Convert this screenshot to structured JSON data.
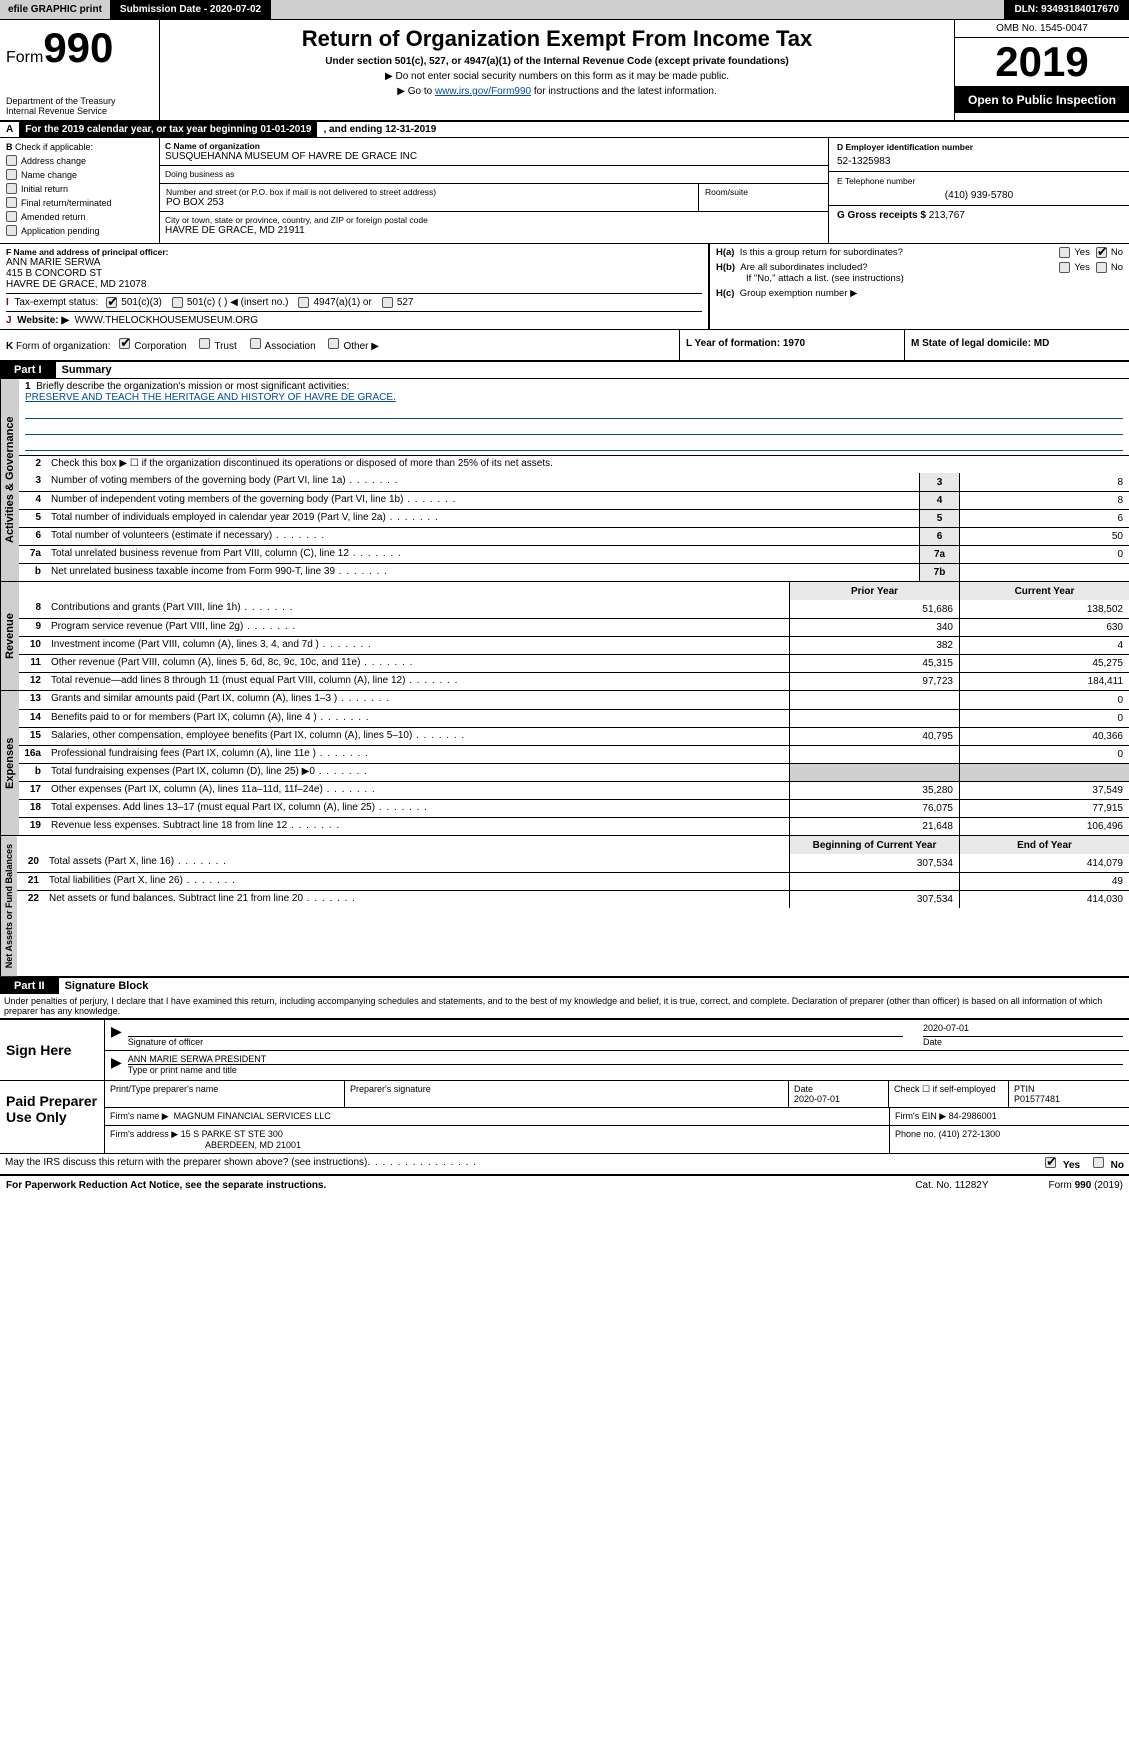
{
  "topbar": {
    "efile": "efile GRAPHIC print",
    "submission_label": "Submission Date - 2020-07-02",
    "dln": "DLN: 93493184017670"
  },
  "header": {
    "form_prefix": "Form",
    "form_number": "990",
    "dept": "Department of the Treasury\nInternal Revenue Service",
    "title": "Return of Organization Exempt From Income Tax",
    "subtitle": "Under section 501(c), 527, or 4947(a)(1) of the Internal Revenue Code (except private foundations)",
    "note1": "▶ Do not enter social security numbers on this form as it may be made public.",
    "note2_prefix": "▶ Go to ",
    "note2_link": "www.irs.gov/Form990",
    "note2_suffix": " for instructions and the latest information.",
    "omb": "OMB No. 1545-0047",
    "year": "2019",
    "open": "Open to Public Inspection"
  },
  "sectA": {
    "taxyear_prefix": "For the 2019 calendar year, or tax year beginning 01-01-2019",
    "taxyear_mid": ", and ending 12-31-2019",
    "B_label": "Check if applicable:",
    "b_items": [
      "Address change",
      "Name change",
      "Initial return",
      "Final return/terminated",
      "Amended return",
      "Application pending"
    ],
    "C_label": "C Name of organization",
    "org_name": "SUSQUEHANNA MUSEUM OF HAVRE DE GRACE INC",
    "dba_label": "Doing business as",
    "street_label": "Number and street (or P.O. box if mail is not delivered to street address)",
    "street": "PO BOX 253",
    "room_label": "Room/suite",
    "city_label": "City or town, state or province, country, and ZIP or foreign postal code",
    "city": "HAVRE DE GRACE, MD  21911",
    "D_label": "D Employer identification number",
    "ein": "52-1325983",
    "E_label": "E Telephone number",
    "phone": "(410) 939-5780",
    "G_label": "G Gross receipts $",
    "gross": "213,767",
    "F_label": "F  Name and address of principal officer:",
    "officer_name": "ANN MARIE SERWA",
    "officer_addr1": "415 B CONCORD ST",
    "officer_addr2": "HAVRE DE GRACE, MD  21078",
    "Ha_label": "Is this a group return for subordinates?",
    "Hb_label": "Are all subordinates included?",
    "Hb_note": "If \"No,\" attach a list. (see instructions)",
    "Hc_label": "Group exemption number ▶",
    "I_label": "Tax-exempt status:",
    "I_501c3": "501(c)(3)",
    "I_501c": "501(c) (  ) ◀ (insert no.)",
    "I_4947": "4947(a)(1) or",
    "I_527": "527",
    "J_label": "Website: ▶",
    "website": "WWW.THELOCKHOUSEMUSEUM.ORG",
    "K_label": "Form of organization:",
    "K_opts": [
      "Corporation",
      "Trust",
      "Association",
      "Other ▶"
    ],
    "L_label": "L Year of formation: 1970",
    "M_label": "M State of legal domicile: MD",
    "yes": "Yes",
    "no": "No"
  },
  "part1": {
    "bar": "Part I",
    "title": "Summary",
    "l1_label": "Briefly describe the organization's mission or most significant activities:",
    "l1_text": "PRESERVE AND TEACH THE HERITAGE AND HISTORY OF HAVRE DE GRACE.",
    "l2": "Check this box ▶ ☐ if the organization discontinued its operations or disposed of more than 25% of its net assets.",
    "lines_gov": [
      {
        "num": "3",
        "text": "Number of voting members of the governing body (Part VI, line 1a)",
        "box": "3",
        "val": "8"
      },
      {
        "num": "4",
        "text": "Number of independent voting members of the governing body (Part VI, line 1b)",
        "box": "4",
        "val": "8"
      },
      {
        "num": "5",
        "text": "Total number of individuals employed in calendar year 2019 (Part V, line 2a)",
        "box": "5",
        "val": "6"
      },
      {
        "num": "6",
        "text": "Total number of volunteers (estimate if necessary)",
        "box": "6",
        "val": "50"
      },
      {
        "num": "7a",
        "text": "Total unrelated business revenue from Part VIII, column (C), line 12",
        "box": "7a",
        "val": "0"
      },
      {
        "num": "b",
        "text": "Net unrelated business taxable income from Form 990-T, line 39",
        "box": "7b",
        "val": ""
      }
    ],
    "col_prior": "Prior Year",
    "col_current": "Current Year",
    "rev_lines": [
      {
        "num": "8",
        "text": "Contributions and grants (Part VIII, line 1h)",
        "prior": "51,686",
        "cur": "138,502"
      },
      {
        "num": "9",
        "text": "Program service revenue (Part VIII, line 2g)",
        "prior": "340",
        "cur": "630"
      },
      {
        "num": "10",
        "text": "Investment income (Part VIII, column (A), lines 3, 4, and 7d )",
        "prior": "382",
        "cur": "4"
      },
      {
        "num": "11",
        "text": "Other revenue (Part VIII, column (A), lines 5, 6d, 8c, 9c, 10c, and 11e)",
        "prior": "45,315",
        "cur": "45,275"
      },
      {
        "num": "12",
        "text": "Total revenue—add lines 8 through 11 (must equal Part VIII, column (A), line 12)",
        "prior": "97,723",
        "cur": "184,411"
      }
    ],
    "exp_lines": [
      {
        "num": "13",
        "text": "Grants and similar amounts paid (Part IX, column (A), lines 1–3 )",
        "prior": "",
        "cur": "0"
      },
      {
        "num": "14",
        "text": "Benefits paid to or for members (Part IX, column (A), line 4 )",
        "prior": "",
        "cur": "0"
      },
      {
        "num": "15",
        "text": "Salaries, other compensation, employee benefits (Part IX, column (A), lines 5–10)",
        "prior": "40,795",
        "cur": "40,366"
      },
      {
        "num": "16a",
        "text": "Professional fundraising fees (Part IX, column (A), line 11e )",
        "prior": "",
        "cur": "0"
      },
      {
        "num": "b",
        "text": "Total fundraising expenses (Part IX, column (D), line 25) ▶0",
        "prior": "__shade__",
        "cur": "__shade__"
      },
      {
        "num": "17",
        "text": "Other expenses (Part IX, column (A), lines 11a–11d, 11f–24e)",
        "prior": "35,280",
        "cur": "37,549"
      },
      {
        "num": "18",
        "text": "Total expenses. Add lines 13–17 (must equal Part IX, column (A), line 25)",
        "prior": "76,075",
        "cur": "77,915"
      },
      {
        "num": "19",
        "text": "Revenue less expenses. Subtract line 18 from line 12",
        "prior": "21,648",
        "cur": "106,496"
      }
    ],
    "col_beg": "Beginning of Current Year",
    "col_end": "End of Year",
    "na_lines": [
      {
        "num": "20",
        "text": "Total assets (Part X, line 16)",
        "prior": "307,534",
        "cur": "414,079"
      },
      {
        "num": "21",
        "text": "Total liabilities (Part X, line 26)",
        "prior": "",
        "cur": "49"
      },
      {
        "num": "22",
        "text": "Net assets or fund balances. Subtract line 21 from line 20",
        "prior": "307,534",
        "cur": "414,030"
      }
    ],
    "tab_gov": "Activities & Governance",
    "tab_rev": "Revenue",
    "tab_exp": "Expenses",
    "tab_na": "Net Assets or Fund Balances"
  },
  "part2": {
    "bar": "Part II",
    "title": "Signature Block",
    "penalty": "Under penalties of perjury, I declare that I have examined this return, including accompanying schedules and statements, and to the best of my knowledge and belief, it is true, correct, and complete. Declaration of preparer (other than officer) is based on all information of which preparer has any knowledge.",
    "sign_here": "Sign Here",
    "sig_officer": "Signature of officer",
    "sig_date": "2020-07-01",
    "date_lbl": "Date",
    "officer_name_title": "ANN MARIE SERWA  PRESIDENT",
    "type_name": "Type or print name and title",
    "paid": "Paid Preparer Use Only",
    "pt_name_lbl": "Print/Type preparer's name",
    "pt_sig_lbl": "Preparer's signature",
    "pt_date_lbl": "Date",
    "pt_date": "2020-07-01",
    "pt_check_lbl": "Check ☐ if self-employed",
    "ptin_lbl": "PTIN",
    "ptin": "P01577481",
    "firm_name_lbl": "Firm's name    ▶",
    "firm_name": "MAGNUM FINANCIAL SERVICES LLC",
    "firm_ein_lbl": "Firm's EIN ▶",
    "firm_ein": "84-2986001",
    "firm_addr_lbl": "Firm's address ▶",
    "firm_addr1": "15 S PARKE ST STE 300",
    "firm_addr2": "ABERDEEN, MD  21001",
    "firm_phone_lbl": "Phone no.",
    "firm_phone": "(410) 272-1300",
    "may_irs": "May the IRS discuss this return with the preparer shown above? (see instructions)"
  },
  "footer": {
    "pra": "For Paperwork Reduction Act Notice, see the separate instructions.",
    "cat": "Cat. No. 11282Y",
    "form": "Form 990 (2019)"
  },
  "colors": {
    "link": "#004c9a",
    "shade": "#e8e8e8",
    "grey": "#cfcfcf"
  }
}
